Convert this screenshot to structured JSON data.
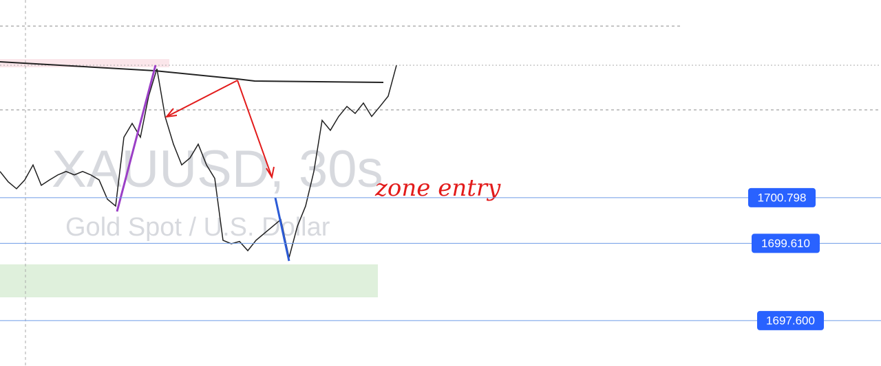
{
  "chart_data": {
    "type": "line",
    "watermark": "XAUUSD, 30s",
    "subtitle": "Gold Spot / U.S. Dollar",
    "annotation": "zone entry",
    "ylim": [
      1696.42,
      1705.94
    ],
    "price_lines": [
      1700.798,
      {
        "value": 1699.61,
        "label": "1699.610"
      },
      {
        "value": 1697.6,
        "label": "1697.600"
      }
    ],
    "color": "#1e1e1e",
    "values": [
      1701.48,
      1701.21,
      1701.03,
      1701.26,
      1701.65,
      1701.12,
      1701.26,
      1701.39,
      1701.48,
      1701.39,
      1701.48,
      1701.39,
      1701.26,
      1700.76,
      1700.58,
      1702.37,
      1702.73,
      1702.37,
      1703.44,
      1704.15,
      1702.9,
      1702.19,
      1701.65,
      1701.83,
      1702.19,
      1701.65,
      1701.3,
      1699.69,
      1699.6,
      1699.66,
      1699.42,
      1699.69,
      1699.87,
      1700.05,
      1700.23,
      1699.24,
      1700.05,
      1700.58,
      1701.48,
      1702.81,
      1702.55,
      1702.91,
      1703.17,
      1702.99,
      1703.26,
      1702.91,
      1703.17,
      1703.44,
      1704.24
    ]
  }
}
